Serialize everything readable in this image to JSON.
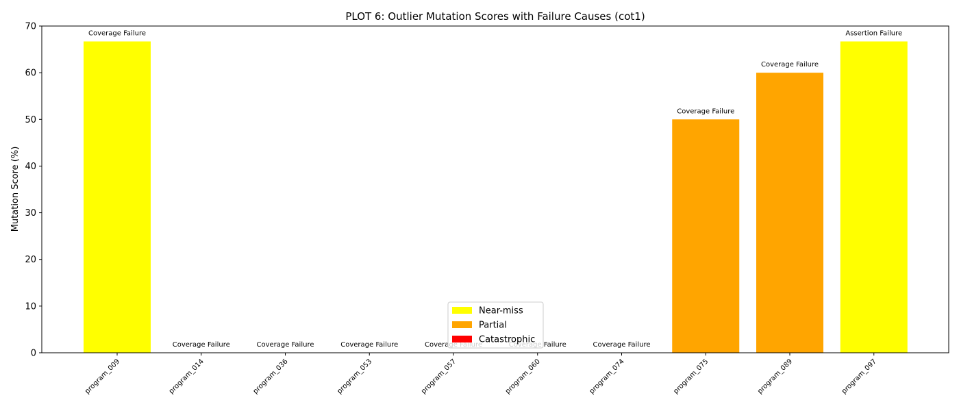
{
  "chart_data": {
    "type": "bar",
    "title": "PLOT 6: Outlier Mutation Scores with Failure Causes (cot1)",
    "xlabel": "",
    "ylabel": "Mutation Score (%)",
    "ylim": [
      0,
      70
    ],
    "yticks": [
      0,
      10,
      20,
      30,
      40,
      50,
      60,
      70
    ],
    "categories": [
      "program_009",
      "program_014",
      "program_036",
      "program_053",
      "program_057",
      "program_060",
      "program_074",
      "program_075",
      "program_089",
      "program_097"
    ],
    "values": [
      66.7,
      0,
      0,
      0,
      0,
      0,
      0,
      50,
      60,
      66.7
    ],
    "bar_groups": [
      "Near-miss",
      "Catastrophic",
      "Catastrophic",
      "Catastrophic",
      "Catastrophic",
      "Catastrophic",
      "Catastrophic",
      "Partial",
      "Partial",
      "Near-miss"
    ],
    "annotations": [
      "Coverage Failure",
      "Coverage Failure",
      "Coverage Failure",
      "Coverage Failure",
      "Coverage Failure",
      "Coverage Failure",
      "Coverage Failure",
      "Coverage Failure",
      "Coverage Failure",
      "Assertion Failure"
    ],
    "legend": {
      "placement": "lower-center",
      "entries": [
        {
          "label": "Near-miss",
          "color": "#ffff00"
        },
        {
          "label": "Partial",
          "color": "#ffa500"
        },
        {
          "label": "Catastrophic",
          "color": "#ff0000"
        }
      ]
    },
    "grid": false
  }
}
